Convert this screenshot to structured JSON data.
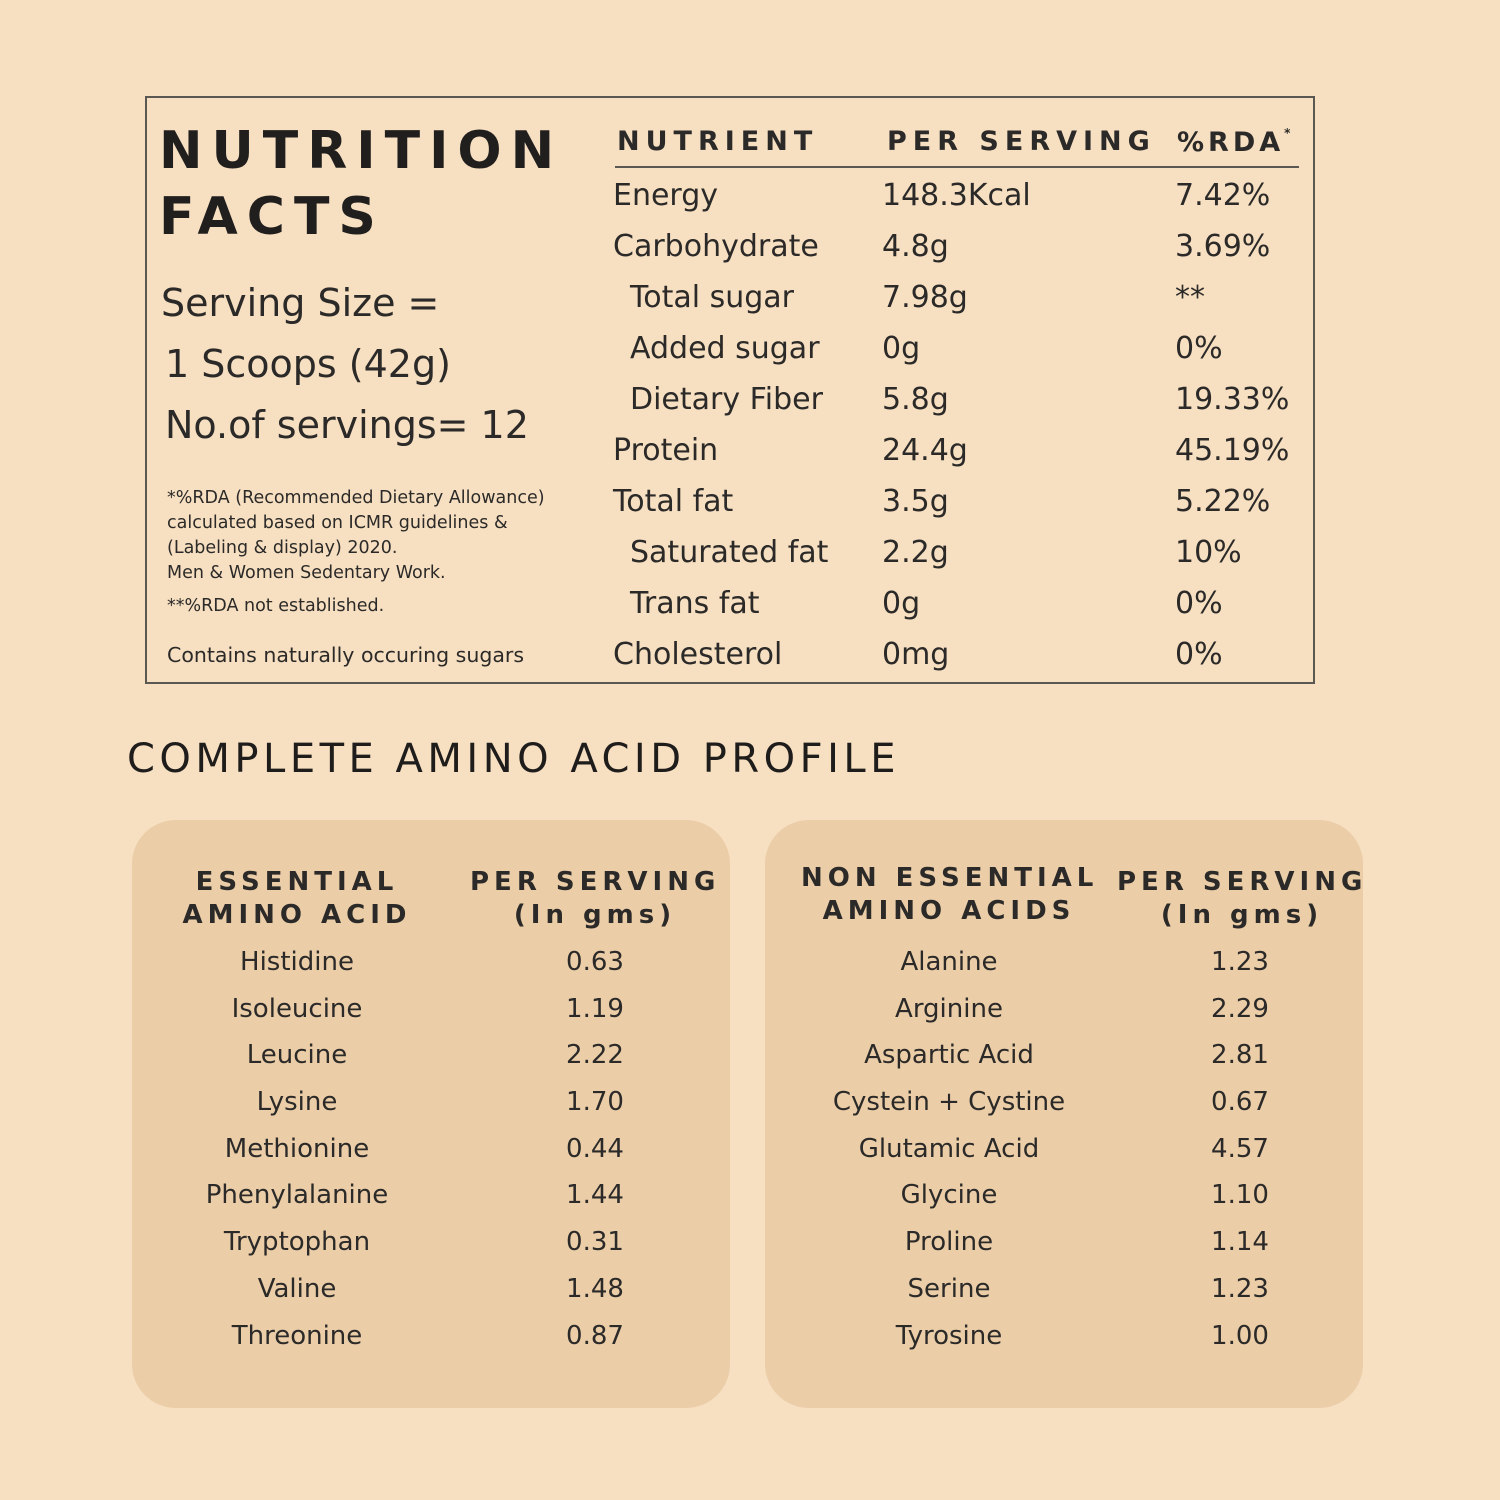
{
  "nutrition": {
    "title_line1": "NUTRITION",
    "title_line2": "FACTS",
    "serving_size_label": "Serving Size =",
    "serving_size_value": "1 Scoops (42g)",
    "servings": "No.of servings= 12",
    "footnote_rda_line1": "*%RDA (Recommended Dietary Allowance)",
    "footnote_rda_line2": "calculated based on ICMR guidelines &",
    "footnote_rda_line3": "(Labeling & display) 2020.",
    "footnote_rda_line4": "Men & Women Sedentary Work.",
    "footnote_not_established": "**%RDA not established.",
    "footnote_sugars": "Contains naturally occuring sugars",
    "header": {
      "nutrient": "NUTRIENT",
      "per_serving": "PER SERVING",
      "rda": "%RDA",
      "rda_mark": "*"
    },
    "rows": [
      {
        "name": "Energy",
        "per_serving": "148.3Kcal",
        "rda": "7.42%",
        "sub": false
      },
      {
        "name": "Carbohydrate",
        "per_serving": "4.8g",
        "rda": "3.69%",
        "sub": false
      },
      {
        "name": "Total sugar",
        "per_serving": "7.98g",
        "rda": "**",
        "sub": true
      },
      {
        "name": "Added sugar",
        "per_serving": "0g",
        "rda": "0%",
        "sub": true
      },
      {
        "name": "Dietary Fiber",
        "per_serving": "5.8g",
        "rda": "19.33%",
        "sub": true
      },
      {
        "name": "Protein",
        "per_serving": "24.4g",
        "rda": "45.19%",
        "sub": false
      },
      {
        "name": "Total fat",
        "per_serving": "3.5g",
        "rda": "5.22%",
        "sub": false
      },
      {
        "name": "Saturated fat",
        "per_serving": "2.2g",
        "rda": "10%",
        "sub": true
      },
      {
        "name": "Trans fat",
        "per_serving": "0g",
        "rda": "0%",
        "sub": true
      },
      {
        "name": "Cholesterol",
        "per_serving": "0mg",
        "rda": "0%",
        "sub": false
      }
    ]
  },
  "amino": {
    "title": "COMPLETE AMINO ACID PROFILE",
    "essential": {
      "header_line1": "ESSENTIAL",
      "header_line2": "AMINO ACID",
      "value_header_line1": "PER SERVING",
      "value_header_line2": "(In gms)",
      "rows": [
        {
          "name": "Histidine",
          "value": "0.63"
        },
        {
          "name": "Isoleucine",
          "value": "1.19"
        },
        {
          "name": "Leucine",
          "value": "2.22"
        },
        {
          "name": "Lysine",
          "value": "1.70"
        },
        {
          "name": "Methionine",
          "value": "0.44"
        },
        {
          "name": "Phenylalanine",
          "value": "1.44"
        },
        {
          "name": "Tryptophan",
          "value": "0.31"
        },
        {
          "name": "Valine",
          "value": "1.48"
        },
        {
          "name": "Threonine",
          "value": "0.87"
        }
      ]
    },
    "non_essential": {
      "header_line1": "NON ESSENTIAL",
      "header_line2": "AMINO ACIDS",
      "value_header_line1": "PER SERVING",
      "value_header_line2": "(In gms)",
      "rows": [
        {
          "name": "Alanine",
          "value": "1.23"
        },
        {
          "name": "Arginine",
          "value": "2.29"
        },
        {
          "name": "Aspartic Acid",
          "value": "2.81"
        },
        {
          "name": "Cystein + Cystine",
          "value": "0.67"
        },
        {
          "name": "Glutamic Acid",
          "value": "4.57"
        },
        {
          "name": "Glycine",
          "value": "1.10"
        },
        {
          "name": "Proline",
          "value": "1.14"
        },
        {
          "name": "Serine",
          "value": "1.23"
        },
        {
          "name": "Tyrosine",
          "value": "1.00"
        }
      ]
    }
  }
}
